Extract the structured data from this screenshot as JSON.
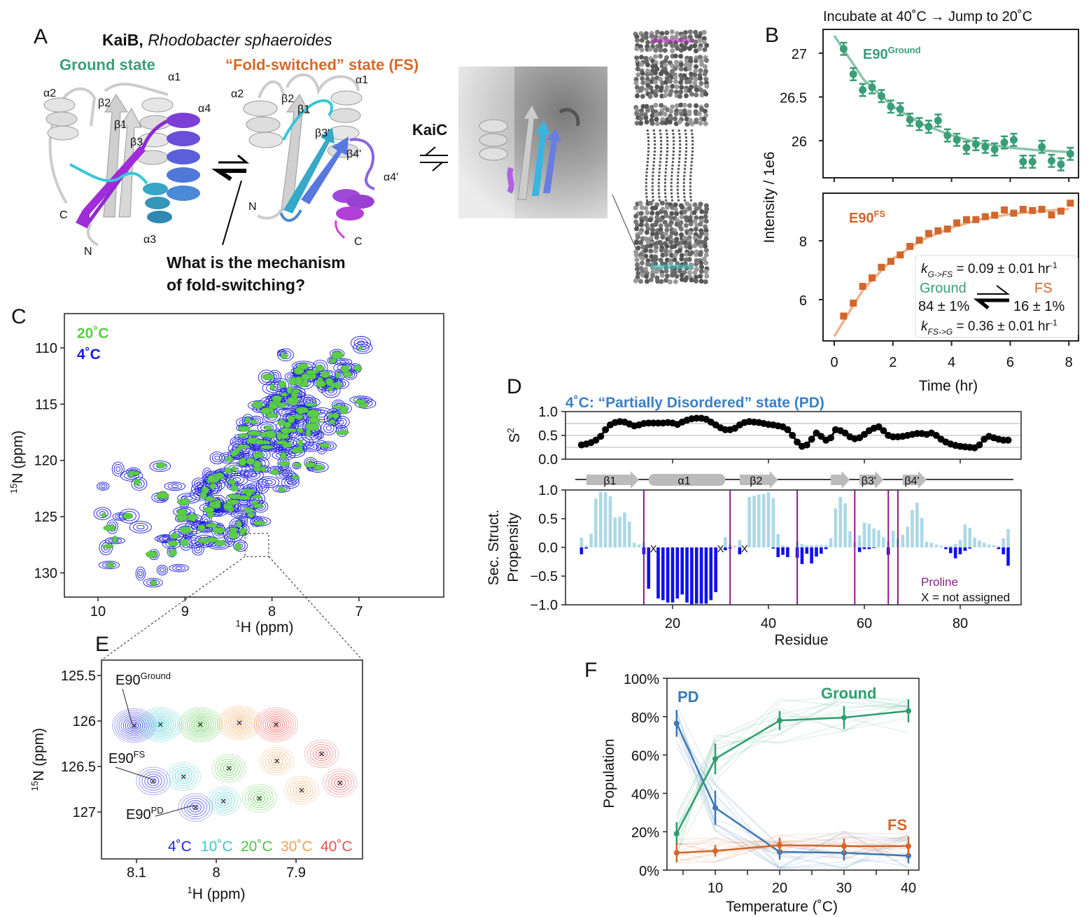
{
  "panel_labels": {
    "A": "A",
    "B": "B",
    "C": "C",
    "D": "D",
    "E": "E",
    "F": "F"
  },
  "panel_a": {
    "protein": "KaiB,",
    "organism": "Rhodobacter sphaeroides",
    "ground_title": "Ground state",
    "fs_title": "“Fold-switched” state (FS)",
    "ground_labels": [
      "α2",
      "β2",
      "β1",
      "β3",
      "α1",
      "α4",
      "C",
      "N",
      "α3"
    ],
    "fs_labels": [
      "α2",
      "β2",
      "β1",
      "β3'",
      "α1",
      "β4'",
      "α4'",
      "N",
      "C"
    ],
    "question_line1": "What is the mechanism",
    "question_line2": "of fold-switching?",
    "partner": "KaiC",
    "colors": {
      "ground": "#3a9e77",
      "fs": "#d5692a"
    }
  },
  "chart_data": [
    {
      "id": "B-top",
      "type": "scatter",
      "title": "Incubate at 40˚C → Jump to 20˚C",
      "ylabel": "Intensity / 1e6",
      "xlabel": "Time (hr)",
      "xlim": [
        0,
        8
      ],
      "ylim": [
        25.6,
        27.2
      ],
      "xticks": [
        0,
        2,
        4,
        6,
        8
      ],
      "xtick_labels": [
        "0",
        "2",
        "4",
        "6",
        "8"
      ],
      "yticks": [
        27,
        26.5,
        26
      ],
      "ytick_labels": [
        "27",
        "26.5",
        "26"
      ],
      "series_label": "E90",
      "series_label_sup": "Ground",
      "color": "#3a9e77",
      "x": [
        0.32,
        0.65,
        0.97,
        1.29,
        1.61,
        1.93,
        2.25,
        2.58,
        2.9,
        3.22,
        3.54,
        3.86,
        4.18,
        4.51,
        4.83,
        5.15,
        5.47,
        5.8,
        6.12,
        6.44,
        6.76,
        7.08,
        7.41,
        7.73,
        8.05
      ],
      "values": [
        27.05,
        26.76,
        26.58,
        26.61,
        26.51,
        26.39,
        26.36,
        26.24,
        26.19,
        26.16,
        26.23,
        26.06,
        26.01,
        25.92,
        25.96,
        25.93,
        25.9,
        25.98,
        26.01,
        25.76,
        25.76,
        25.93,
        25.77,
        25.73,
        25.85
      ],
      "error": 0.07,
      "fit_x": [
        0,
        1,
        2,
        3,
        4,
        5,
        6,
        7,
        8
      ],
      "fit_values": [
        27.2,
        26.7,
        26.39,
        26.19,
        26.06,
        25.97,
        25.92,
        25.89,
        25.87
      ]
    },
    {
      "id": "B-bottom",
      "type": "scatter",
      "xlim": [
        0,
        8
      ],
      "ylim": [
        4.6,
        9.5
      ],
      "yticks": [
        8,
        6
      ],
      "ytick_labels": [
        "8",
        "6"
      ],
      "series_label": "E90",
      "series_label_sup": "FS",
      "color": "#d2672a",
      "x": [
        0.32,
        0.65,
        0.97,
        1.29,
        1.61,
        1.93,
        2.25,
        2.58,
        2.9,
        3.22,
        3.54,
        3.86,
        4.18,
        4.51,
        4.83,
        5.15,
        5.47,
        5.8,
        6.12,
        6.44,
        6.76,
        7.08,
        7.41,
        7.73,
        8.05
      ],
      "values": [
        5.44,
        5.88,
        6.45,
        6.74,
        7.1,
        7.3,
        7.52,
        7.81,
        8.02,
        8.25,
        8.34,
        8.4,
        8.61,
        8.72,
        8.72,
        8.82,
        8.87,
        9.05,
        8.94,
        9.07,
        9.03,
        9.07,
        8.88,
        9.01,
        9.28
      ],
      "fit_x": [
        0,
        1,
        2,
        3,
        4,
        5,
        6,
        7,
        8
      ],
      "fit_values": [
        4.75,
        6.36,
        7.39,
        8.03,
        8.45,
        8.73,
        8.91,
        9.01,
        9.08
      ],
      "annotation": {
        "k1_sym": "k",
        "k1_sub": "G->FS",
        "k1_val": " = 0.09 ± 0.01 hr",
        "k1_unit_sup": "-1",
        "left_state": "Ground",
        "right_state": "FS",
        "left_pop": "84 ± 1%",
        "right_pop": "16 ± 1%",
        "k2_sym": "k",
        "k2_sub": "FS->G",
        "k2_val": " = 0.36 ± 0.01 hr",
        "k2_unit_sup": "-1"
      }
    },
    {
      "id": "C",
      "type": "contour",
      "xlabel_sup": "1",
      "xlabel": "H (ppm)",
      "ylabel_sup": "15",
      "ylabel": "N (ppm)",
      "xlim": [
        10.4,
        6.0
      ],
      "ylim": [
        132.2,
        107.0
      ],
      "xticks": [
        10,
        9,
        8,
        7
      ],
      "xtick_labels": [
        "10",
        "9",
        "8",
        "7"
      ],
      "yticks": [
        110,
        115,
        120,
        125,
        130
      ],
      "ytick_labels": [
        "110",
        "115",
        "120",
        "125",
        "130"
      ],
      "legend": [
        {
          "label": "20˚C",
          "color": "#5ccc4a"
        },
        {
          "label": "4˚C",
          "color": "#1a1adf"
        }
      ]
    },
    {
      "id": "D-S2",
      "type": "scatter",
      "title": "4˚C: “Partially Disordered” state (PD)",
      "title_color": "#3b7fc4",
      "ylabel": "S",
      "ylabel_sup": "2",
      "ylim": [
        0,
        1
      ],
      "yticks": [
        1.0,
        0.5,
        0.0
      ],
      "ytick_labels": [
        "1.0",
        "0.5",
        "0.0"
      ],
      "gridlines": [
        0.25,
        0.5,
        0.75
      ],
      "xlim": [
        -2,
        93
      ],
      "residues_start": 1,
      "values": [
        0.3,
        0.32,
        0.35,
        0.4,
        0.48,
        0.62,
        0.72,
        0.77,
        0.79,
        0.78,
        0.74,
        0.7,
        0.72,
        0.75,
        0.76,
        0.76,
        0.76,
        0.76,
        0.77,
        0.76,
        0.73,
        0.78,
        0.82,
        0.85,
        0.86,
        0.86,
        0.84,
        0.78,
        0.72,
        0.66,
        0.62,
        0.62,
        0.65,
        0.72,
        0.77,
        0.79,
        0.78,
        0.77,
        0.75,
        0.73,
        0.72,
        0.7,
        0.68,
        0.62,
        0.5,
        0.36,
        0.27,
        0.3,
        0.42,
        0.55,
        0.48,
        0.4,
        0.45,
        0.62,
        0.6,
        0.55,
        0.47,
        0.43,
        0.45,
        0.52,
        0.6,
        0.65,
        0.68,
        0.6,
        0.5,
        0.47,
        0.47,
        0.48,
        0.5,
        0.52,
        0.54,
        0.54,
        0.52,
        0.55,
        0.5,
        0.42,
        0.36,
        0.32,
        0.29,
        0.27,
        0.26,
        0.25,
        0.24,
        0.3,
        0.42,
        0.48,
        0.45,
        0.42,
        0.4,
        0.4
      ]
    },
    {
      "id": "D-SSP",
      "type": "bar",
      "ylabel_line1": "Sec. Struct.",
      "ylabel_line2": "Propensity",
      "xlabel": "Residue",
      "xlim": [
        -2,
        93
      ],
      "ylim": [
        -1,
        1
      ],
      "xticks": [
        20,
        40,
        60,
        80
      ],
      "xtick_labels": [
        "20",
        "40",
        "60",
        "80"
      ],
      "yticks": [
        1.0,
        0.5,
        0.0,
        -0.5,
        -1.0
      ],
      "ytick_labels": [
        "1.0",
        "0.5",
        "0.0",
        "−0.5",
        "−1.0"
      ],
      "residues_start": 1,
      "beta": [
        0.17,
        0.03,
        0.24,
        0.85,
        0.97,
        0.96,
        0.89,
        0.52,
        0.53,
        0.61,
        0.45,
        0.08,
        0.05,
        0.09,
        0,
        0,
        0,
        0,
        0,
        0,
        0,
        0,
        0,
        0,
        0,
        0,
        0,
        0,
        0,
        0,
        0.18,
        0.05,
        0.03,
        0.13,
        0,
        0.88,
        0.9,
        0.92,
        0.93,
        0.96,
        0.86,
        0.23,
        0.04,
        0.02,
        0,
        0.1,
        0.06,
        0.04,
        0.04,
        0.04,
        0.04,
        0.04,
        0.16,
        0.68,
        0.88,
        0.77,
        0.28,
        0.09,
        0.21,
        0.43,
        0.41,
        0.33,
        0.3,
        0.18,
        0.11,
        0.29,
        0.15,
        0.22,
        0.36,
        0.65,
        0.78,
        0.51,
        0.1,
        0.08,
        0.05,
        0.03,
        0.02,
        0.03,
        0.06,
        0.13,
        0.4,
        0.34,
        0.17,
        0.12,
        0.08,
        0.05,
        0.04,
        0.02,
        0.16,
        0.32
      ],
      "helix": [
        -0.12,
        -0.02,
        0,
        0,
        0,
        0,
        0,
        0,
        0,
        0,
        0,
        0,
        0,
        -0.12,
        -0.72,
        0,
        -0.89,
        -0.92,
        -0.96,
        -0.96,
        -0.89,
        -0.82,
        -0.96,
        -0.99,
        -0.98,
        -0.98,
        -0.98,
        -0.92,
        -0.78,
        0,
        -0.05,
        -0.02,
        0,
        -0.12,
        0,
        0,
        0,
        0,
        0,
        0,
        -0.02,
        -0.17,
        -0.13,
        -0.17,
        0,
        -0.18,
        -0.29,
        -0.11,
        -0.28,
        -0.16,
        -0.11,
        -0.03,
        0,
        0,
        0,
        0,
        0,
        0,
        -0.08,
        -0.03,
        -0.03,
        -0.01,
        0,
        0,
        -0.13,
        0,
        0,
        0,
        0,
        0,
        0,
        0,
        0,
        0,
        0,
        0,
        -0.03,
        -0.1,
        -0.19,
        -0.12,
        -0.06,
        -0.02,
        0,
        0,
        0,
        0,
        0,
        -0.03,
        -0.12,
        -0.32
      ],
      "beta_color": "#add8e6",
      "helix_color": "#1010f0",
      "prolines": [
        14,
        32,
        46,
        58,
        65,
        67
      ],
      "proline_color": "#8b1a8b",
      "not_assigned": [
        16,
        30,
        35
      ],
      "not_assigned_mark": "X",
      "legend_proline": "Proline",
      "legend_x": "X = not assigned",
      "secondary_structure": [
        {
          "type": "strand",
          "label": "β1",
          "start": 2,
          "end": 13
        },
        {
          "type": "helix",
          "label": "α1",
          "start": 15,
          "end": 31
        },
        {
          "type": "strand",
          "label": "β2",
          "start": 34,
          "end": 42
        },
        {
          "type": "strand",
          "label": "",
          "start": 53,
          "end": 57
        },
        {
          "type": "strand",
          "label": "β3'",
          "start": 59,
          "end": 64
        },
        {
          "type": "strand",
          "label": "β4'",
          "start": 68,
          "end": 73
        }
      ]
    },
    {
      "id": "E",
      "type": "contour",
      "xlabel_sup": "1",
      "xlabel": "H (ppm)",
      "ylabel_sup": "15",
      "ylabel": "N (ppm)",
      "xlim": [
        8.15,
        7.82
      ],
      "ylim": [
        125.35,
        127.55
      ],
      "xticks": [
        8.1,
        8.0,
        7.9
      ],
      "xtick_labels": [
        "8.1",
        "8",
        "7.9"
      ],
      "yticks": [
        125.5,
        126,
        126.5,
        127
      ],
      "ytick_labels": [
        "125.5",
        "126",
        "126.5",
        "127"
      ],
      "temperatures": [
        {
          "label": "4˚C",
          "color": "#2222e6"
        },
        {
          "label": "10˚C",
          "color": "#38c6d0"
        },
        {
          "label": "20˚C",
          "color": "#4cc63c"
        },
        {
          "label": "30˚C",
          "color": "#f2a050"
        },
        {
          "label": "40˚C",
          "color": "#ec5050"
        }
      ],
      "peak_groups": [
        {
          "label": "E90",
          "label_sup": "Ground",
          "H": [
            8.103,
            8.07,
            8.02,
            7.971,
            7.925
          ],
          "N": [
            126.05,
            126.04,
            126.04,
            126.02,
            126.04
          ]
        },
        {
          "label": "E90",
          "label_sup": "FS",
          "H": [
            8.079,
            8.041,
            7.984,
            7.924,
            7.868
          ],
          "N": [
            126.66,
            126.61,
            126.52,
            126.44,
            126.36
          ]
        },
        {
          "label": "E90",
          "label_sup": "PD",
          "H": [
            8.026,
            7.991,
            7.946,
            7.893,
            7.845
          ],
          "N": [
            126.95,
            126.88,
            126.85,
            126.76,
            126.68
          ]
        }
      ]
    },
    {
      "id": "F",
      "type": "line",
      "xlabel": "Temperature (˚C)",
      "ylabel": "Population",
      "xlim": [
        3,
        41.5
      ],
      "ylim": [
        0,
        100
      ],
      "xticks": [
        10,
        20,
        30,
        40
      ],
      "xtick_labels": [
        "10",
        "20",
        "30",
        "40"
      ],
      "minor_xticks": [
        5,
        15,
        25,
        35
      ],
      "yticks": [
        0,
        20,
        40,
        60,
        80,
        100
      ],
      "ytick_labels": [
        "0%",
        "20%",
        "40%",
        "60%",
        "80%",
        "100%"
      ],
      "x": [
        4,
        10,
        20,
        30,
        40
      ],
      "series": [
        {
          "name": "PD",
          "color": "#3a78b8",
          "values": [
            76.5,
            32.5,
            9.5,
            9,
            7.5
          ],
          "error": [
            7,
            9,
            4,
            4,
            4
          ]
        },
        {
          "name": "Ground",
          "color": "#2e9e6e",
          "values": [
            19,
            58,
            78,
            79.5,
            83
          ],
          "error": [
            6,
            8,
            5,
            6,
            6
          ]
        },
        {
          "name": "FS",
          "color": "#d2672a",
          "values": [
            9,
            10,
            13,
            12.5,
            12.5
          ],
          "error": [
            5,
            3,
            4,
            4,
            5
          ]
        }
      ]
    }
  ]
}
